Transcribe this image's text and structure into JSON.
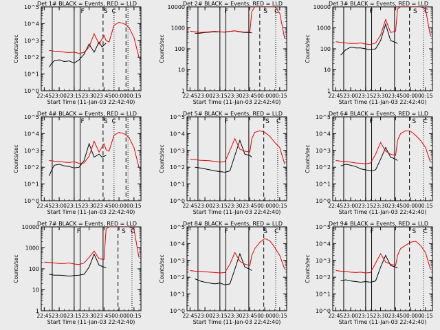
{
  "figure": {
    "xlabel": "Start Time (11-Jan-03 22:42:40)",
    "ylabel": "Counts/sec",
    "x_tick_labels": [
      "22:45",
      "23:00",
      "23:15",
      "23:30",
      "23:45",
      "00:00",
      "00:15"
    ],
    "colors": {
      "events": "#000000",
      "lld": "#dd0000",
      "background": "#ebebeb",
      "axes": "#000000"
    }
  },
  "chart_data": [
    {
      "type": "line",
      "panel": 1,
      "title": "Det 1# BLACK = Events, RED = LLD",
      "ylabel": "Counts/sec",
      "xlabel": "Start Time (11-Jan-03 22:42:40)",
      "yscale": "log",
      "ylim": [
        1,
        100000
      ],
      "xlim": [
        -3,
        97
      ],
      "y_tick_labels": [
        "10^0",
        "10^1",
        "10^2",
        "10^3",
        "10^4",
        "10^5"
      ],
      "x": [
        5,
        10,
        15,
        20,
        25,
        30,
        35,
        40,
        45,
        50,
        55,
        60,
        62,
        65,
        70,
        75,
        80,
        85,
        90,
        95
      ],
      "series": [
        {
          "name": "Events",
          "color": "#000000",
          "x": [
            5,
            7,
            10,
            15,
            20,
            25,
            30,
            35,
            40,
            45,
            50,
            55,
            58,
            62
          ],
          "values": [
            25,
            40,
            60,
            70,
            55,
            60,
            45,
            70,
            150,
            600,
            200,
            800,
            400,
            700
          ]
        },
        {
          "name": "LLD",
          "color": "#dd0000",
          "values": [
            250,
            230,
            220,
            200,
            190,
            200,
            170,
            190,
            400,
            2500,
            600,
            2000,
            1000,
            800,
            8000,
            12000,
            10000,
            6000,
            1500,
            100
          ]
        }
      ],
      "vlines_solid": [
        8,
        30,
        36
      ],
      "vlines_dashed": [
        59,
        82
      ],
      "vlines_dotted": [
        70,
        84
      ],
      "markers": [
        {
          "label": "F",
          "x": 36
        },
        {
          "label": "S",
          "x": 59
        },
        {
          "label": "C",
          "x": 67
        }
      ]
    },
    {
      "type": "line",
      "panel": 2,
      "title": "Det 2# BLACK = Events, RED = LLD",
      "ylabel": "Counts/sec",
      "xlabel": "Start Time (11-Jan-03 22:42:40)",
      "yscale": "log",
      "ylim": [
        1,
        10000
      ],
      "xlim": [
        -3,
        97
      ],
      "y_tick_labels": [
        "1",
        "10",
        "100",
        "1000",
        "10000"
      ],
      "x": [
        0,
        5,
        10,
        15,
        20,
        25,
        30,
        35,
        40,
        45,
        50,
        55,
        60,
        62,
        65,
        70,
        75,
        80,
        85,
        90,
        95
      ],
      "series": [
        {
          "name": "Events",
          "color": "#000000",
          "x": [
            5,
            10,
            15,
            20,
            25,
            30,
            35,
            40,
            45,
            50,
            55,
            60,
            62
          ],
          "values": [
            550,
            560,
            600,
            620,
            650,
            640,
            630,
            680,
            720,
            640,
            600,
            600,
            580
          ]
        },
        {
          "name": "LLD",
          "color": "#dd0000",
          "values": [
            700,
            650,
            600,
            620,
            650,
            680,
            640,
            620,
            680,
            720,
            660,
            620,
            640,
            6000,
            10000,
            10000,
            10000,
            10000,
            10000,
            5000,
            300
          ]
        }
      ],
      "vlines_solid": [
        8,
        30,
        36,
        59
      ],
      "vlines_dashed": [
        70
      ],
      "vlines_dotted": [
        86
      ],
      "markers": [
        {
          "label": "F",
          "x": 34
        },
        {
          "label": "S",
          "x": 73
        },
        {
          "label": "C",
          "x": 84
        }
      ]
    },
    {
      "type": "line",
      "panel": 3,
      "title": "Det 3# BLACK = Events, RED = LLD",
      "ylabel": "Counts/sec",
      "xlabel": "Start Time (11-Jan-03 22:42:40)",
      "yscale": "log",
      "ylim": [
        1,
        10000
      ],
      "xlim": [
        -3,
        97
      ],
      "y_tick_labels": [
        "1",
        "10",
        "100",
        "1000",
        "10000"
      ],
      "x": [
        0,
        5,
        10,
        15,
        20,
        25,
        30,
        35,
        40,
        45,
        50,
        55,
        60,
        62,
        65,
        70,
        75,
        80,
        85,
        90,
        95
      ],
      "series": [
        {
          "name": "Events",
          "color": "#000000",
          "x": [
            5,
            10,
            15,
            20,
            25,
            30,
            35,
            40,
            45,
            50,
            55,
            60,
            62
          ],
          "values": [
            50,
            90,
            120,
            110,
            110,
            100,
            90,
            100,
            250,
            1500,
            250,
            200,
            180
          ]
        },
        {
          "name": "LLD",
          "color": "#dd0000",
          "values": [
            220,
            200,
            190,
            180,
            180,
            190,
            170,
            160,
            190,
            450,
            2500,
            600,
            700,
            8000,
            10000,
            10000,
            10000,
            10000,
            10000,
            8000,
            400
          ]
        }
      ],
      "vlines_solid": [
        8,
        30,
        36,
        59
      ],
      "vlines_dashed": [
        74
      ],
      "vlines_dotted": [
        88
      ],
      "markers": [
        {
          "label": "F",
          "x": 33
        },
        {
          "label": "S",
          "x": 77
        },
        {
          "label": "C",
          "x": 88
        }
      ]
    },
    {
      "type": "line",
      "panel": 4,
      "title": "Det 4# BLACK = Events, RED = LLD",
      "ylabel": "Counts/sec",
      "xlabel": "Start Time (11-Jan-03 22:42:40)",
      "yscale": "log",
      "ylim": [
        1,
        100000
      ],
      "xlim": [
        -3,
        97
      ],
      "y_tick_labels": [
        "10^0",
        "10^1",
        "10^2",
        "10^3",
        "10^4",
        "10^5"
      ],
      "x": [
        5,
        10,
        15,
        20,
        25,
        30,
        35,
        40,
        45,
        50,
        55,
        60,
        62,
        65,
        70,
        75,
        80,
        85,
        90,
        95
      ],
      "series": [
        {
          "name": "Events",
          "color": "#000000",
          "x": [
            5,
            7,
            10,
            15,
            20,
            25,
            30,
            35,
            40,
            45,
            50,
            55,
            58,
            62
          ],
          "values": [
            30,
            60,
            130,
            150,
            120,
            110,
            90,
            100,
            250,
            2500,
            400,
            600,
            400,
            500
          ]
        },
        {
          "name": "LLD",
          "color": "#dd0000",
          "values": [
            250,
            230,
            220,
            200,
            190,
            210,
            170,
            180,
            450,
            3500,
            800,
            2500,
            1100,
            900,
            8000,
            12000,
            10000,
            6000,
            1500,
            100
          ]
        }
      ],
      "vlines_solid": [
        8,
        30,
        36
      ],
      "vlines_dashed": [
        59,
        82
      ],
      "vlines_dotted": [
        70,
        84
      ],
      "markers": [
        {
          "label": "F",
          "x": 36
        },
        {
          "label": "S",
          "x": 59
        },
        {
          "label": "C",
          "x": 67
        }
      ]
    },
    {
      "type": "line",
      "panel": 5,
      "title": "Det 5# BLACK = Events, RED = LLD",
      "ylabel": "Counts/sec",
      "xlabel": "Start Time (11-Jan-03 22:42:40)",
      "yscale": "log",
      "ylim": [
        1,
        100000
      ],
      "xlim": [
        -3,
        97
      ],
      "y_tick_labels": [
        "10^0",
        "10^1",
        "10^2",
        "10^3",
        "10^4",
        "10^5"
      ],
      "x": [
        0,
        5,
        10,
        15,
        20,
        25,
        30,
        35,
        40,
        45,
        50,
        55,
        60,
        62,
        65,
        70,
        75,
        80,
        85,
        90,
        95
      ],
      "series": [
        {
          "name": "Events",
          "color": "#000000",
          "x": [
            5,
            10,
            15,
            20,
            25,
            30,
            35,
            40,
            45,
            50,
            55,
            60,
            62
          ],
          "values": [
            100,
            90,
            80,
            70,
            60,
            55,
            50,
            60,
            500,
            4000,
            600,
            500,
            400
          ]
        },
        {
          "name": "LLD",
          "color": "#dd0000",
          "values": [
            300,
            280,
            260,
            250,
            240,
            220,
            200,
            210,
            1000,
            5000,
            1200,
            900,
            800,
            5000,
            12000,
            15000,
            12000,
            7000,
            3000,
            1500,
            150
          ]
        }
      ],
      "vlines_solid": [
        8,
        30,
        36,
        59
      ],
      "vlines_dashed": [
        74
      ],
      "vlines_dotted": [
        88
      ],
      "markers": [
        {
          "label": "F",
          "x": 34
        },
        {
          "label": "S",
          "x": 75
        },
        {
          "label": "C",
          "x": 86
        }
      ]
    },
    {
      "type": "line",
      "panel": 6,
      "title": "Det 6# BLACK = Events, RED = LLD",
      "ylabel": "Counts/sec",
      "xlabel": "Start Time (11-Jan-03 22:42:40)",
      "yscale": "log",
      "ylim": [
        1,
        100000
      ],
      "xlim": [
        -3,
        97
      ],
      "y_tick_labels": [
        "10^0",
        "10^1",
        "10^2",
        "10^3",
        "10^4",
        "10^5"
      ],
      "x": [
        0,
        5,
        10,
        15,
        20,
        25,
        30,
        35,
        40,
        45,
        50,
        55,
        60,
        62,
        65,
        70,
        75,
        80,
        85,
        90,
        95
      ],
      "series": [
        {
          "name": "Events",
          "color": "#000000",
          "x": [
            5,
            10,
            15,
            20,
            25,
            30,
            35,
            40,
            45,
            50,
            55,
            60,
            62
          ],
          "values": [
            120,
            150,
            130,
            110,
            80,
            70,
            60,
            70,
            300,
            1500,
            400,
            300,
            250
          ]
        },
        {
          "name": "LLD",
          "color": "#dd0000",
          "values": [
            250,
            230,
            220,
            200,
            180,
            170,
            160,
            180,
            600,
            3000,
            900,
            600,
            500,
            4000,
            10000,
            15000,
            14000,
            8000,
            4000,
            1500,
            200
          ]
        }
      ],
      "vlines_solid": [
        8,
        30,
        36,
        59
      ],
      "vlines_dashed": [
        74
      ],
      "vlines_dotted": [
        88
      ],
      "markers": [
        {
          "label": "F",
          "x": 33
        },
        {
          "label": "S",
          "x": 76
        },
        {
          "label": "C",
          "x": 87
        }
      ]
    },
    {
      "type": "line",
      "panel": 7,
      "title": "Det 7# BLACK = Events, RED = LLD",
      "ylabel": "Counts/sec",
      "xlabel": "Start Time (11-Jan-03 22:42:40)",
      "yscale": "log",
      "ylim": [
        1,
        10000
      ],
      "xlim": [
        -3,
        97
      ],
      "y_tick_labels": [
        "1",
        "10",
        "100",
        "1000",
        "10000"
      ],
      "x": [
        0,
        5,
        10,
        15,
        20,
        25,
        30,
        35,
        40,
        45,
        50,
        55,
        60,
        62,
        65,
        70,
        75,
        80,
        85,
        90,
        95
      ],
      "series": [
        {
          "name": "Events",
          "color": "#000000",
          "x": [
            5,
            10,
            15,
            20,
            25,
            30,
            35,
            40,
            45,
            50,
            55,
            60,
            62
          ],
          "values": [
            55,
            50,
            50,
            48,
            45,
            48,
            50,
            55,
            120,
            500,
            150,
            120,
            110
          ]
        },
        {
          "name": "LLD",
          "color": "#dd0000",
          "values": [
            210,
            200,
            190,
            180,
            180,
            190,
            170,
            160,
            190,
            350,
            700,
            300,
            280,
            8000,
            10000,
            10000,
            10000,
            10000,
            10000,
            8000,
            350
          ]
        }
      ],
      "vlines_solid": [
        8,
        30,
        36,
        59
      ],
      "vlines_dashed": [
        74
      ],
      "vlines_dotted": [
        88
      ],
      "markers": [
        {
          "label": "F",
          "x": 32
        },
        {
          "label": "S",
          "x": 77
        },
        {
          "label": "C",
          "x": 86
        }
      ]
    },
    {
      "type": "line",
      "panel": 8,
      "title": "Det 8# BLACK = Events, RED = LLD",
      "ylabel": "Counts/sec",
      "xlabel": "Start Time (11-Jan-03 22:42:40)",
      "yscale": "log",
      "ylim": [
        1,
        100000
      ],
      "xlim": [
        -3,
        97
      ],
      "y_tick_labels": [
        "10^0",
        "10^1",
        "10^2",
        "10^3",
        "10^4",
        "10^5"
      ],
      "x": [
        0,
        5,
        10,
        15,
        20,
        25,
        30,
        35,
        40,
        45,
        50,
        55,
        60,
        62,
        65,
        70,
        75,
        80,
        85,
        90,
        95
      ],
      "series": [
        {
          "name": "Events",
          "color": "#000000",
          "x": [
            5,
            10,
            15,
            20,
            25,
            30,
            35,
            40,
            45,
            50,
            55,
            60,
            62
          ],
          "values": [
            80,
            60,
            50,
            45,
            40,
            45,
            35,
            40,
            300,
            2500,
            400,
            300,
            250
          ]
        },
        {
          "name": "LLD",
          "color": "#dd0000",
          "values": [
            250,
            230,
            220,
            210,
            200,
            190,
            180,
            190,
            600,
            3000,
            900,
            600,
            500,
            2000,
            5000,
            12000,
            20000,
            15000,
            6000,
            2000,
            300
          ]
        }
      ],
      "vlines_solid": [
        8,
        30,
        36,
        59
      ],
      "vlines_dashed": [
        74
      ],
      "vlines_dotted": [
        86
      ],
      "markers": [
        {
          "label": "F",
          "x": 34
        },
        {
          "label": "S",
          "x": 73
        },
        {
          "label": "C",
          "x": 84
        }
      ]
    },
    {
      "type": "line",
      "panel": 9,
      "title": "Det 9# BLACK = Events, RED = LLD",
      "ylabel": "Counts/sec",
      "xlabel": "Start Time (11-Jan-03 22:42:40)",
      "yscale": "log",
      "ylim": [
        1,
        100000
      ],
      "xlim": [
        -3,
        97
      ],
      "y_tick_labels": [
        "10^0",
        "10^1",
        "10^2",
        "10^3",
        "10^4",
        "10^5"
      ],
      "x": [
        0,
        5,
        10,
        15,
        20,
        25,
        30,
        35,
        40,
        45,
        50,
        55,
        60,
        62,
        65,
        70,
        75,
        80,
        85,
        90,
        95
      ],
      "series": [
        {
          "name": "Events",
          "color": "#000000",
          "x": [
            5,
            10,
            15,
            20,
            25,
            30,
            35,
            40,
            45,
            50,
            55,
            60,
            62
          ],
          "values": [
            60,
            70,
            60,
            55,
            50,
            55,
            50,
            60,
            400,
            2000,
            500,
            400,
            350
          ]
        },
        {
          "name": "LLD",
          "color": "#dd0000",
          "values": [
            250,
            230,
            220,
            200,
            190,
            200,
            180,
            190,
            700,
            2500,
            800,
            600,
            500,
            2000,
            5000,
            8000,
            12000,
            14000,
            8000,
            3000,
            300
          ]
        }
      ],
      "vlines_solid": [
        8,
        30,
        36,
        59
      ],
      "vlines_dashed": [
        74
      ],
      "vlines_dotted": [
        88
      ],
      "markers": [
        {
          "label": "F",
          "x": 34
        },
        {
          "label": "S",
          "x": 76
        },
        {
          "label": "C",
          "x": 87
        }
      ]
    }
  ]
}
